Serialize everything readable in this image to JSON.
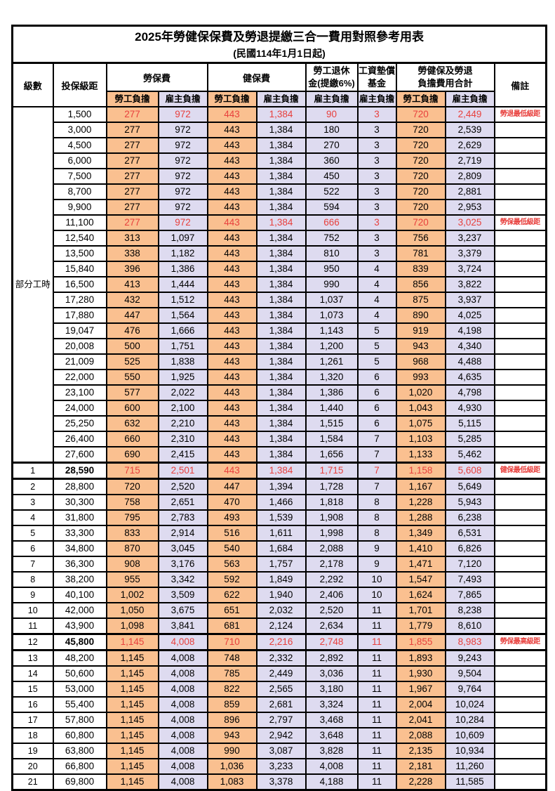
{
  "title": {
    "line1": "2025年勞健保保費及勞退提繳三合一費用對照參考用表",
    "line2": "(民國114年1月1日起)"
  },
  "header": {
    "level": "級數",
    "bracket": "投保級距",
    "labor": "勞保費",
    "health": "健保費",
    "pension_l1": "勞工退休",
    "pension_l2": "金(提繳6%)",
    "fund_l1": "工資墊償",
    "fund_l2": "基金",
    "total_l1": "勞健保及勞退",
    "total_l2": "負擔費用合計",
    "note": "備註",
    "employee": "勞工負擔",
    "employer": "雇主負擔"
  },
  "colors": {
    "employee_share_bg": "#FAC090",
    "employer_share_bg": "#DEDBF0",
    "highlight_text": "#E8403D"
  },
  "rows": [
    {
      "level": "部分工時",
      "level_span": 23,
      "bracket": "1,500",
      "values": [
        "277",
        "972",
        "443",
        "1,384",
        "90",
        "3",
        "720",
        "2,449"
      ],
      "note": "勞退最低級距",
      "red": true
    },
    {
      "bracket": "3,000",
      "values": [
        "277",
        "972",
        "443",
        "1,384",
        "180",
        "3",
        "720",
        "2,539"
      ],
      "note": ""
    },
    {
      "bracket": "4,500",
      "values": [
        "277",
        "972",
        "443",
        "1,384",
        "270",
        "3",
        "720",
        "2,629"
      ],
      "note": ""
    },
    {
      "bracket": "6,000",
      "values": [
        "277",
        "972",
        "443",
        "1,384",
        "360",
        "3",
        "720",
        "2,719"
      ],
      "note": ""
    },
    {
      "bracket": "7,500",
      "values": [
        "277",
        "972",
        "443",
        "1,384",
        "450",
        "3",
        "720",
        "2,809"
      ],
      "note": ""
    },
    {
      "bracket": "8,700",
      "values": [
        "277",
        "972",
        "443",
        "1,384",
        "522",
        "3",
        "720",
        "2,881"
      ],
      "note": ""
    },
    {
      "bracket": "9,900",
      "values": [
        "277",
        "972",
        "443",
        "1,384",
        "594",
        "3",
        "720",
        "2,953"
      ],
      "note": ""
    },
    {
      "bracket": "11,100",
      "values": [
        "277",
        "972",
        "443",
        "1,384",
        "666",
        "3",
        "720",
        "3,025"
      ],
      "note": "勞保最低級距",
      "red": true
    },
    {
      "bracket": "12,540",
      "values": [
        "313",
        "1,097",
        "443",
        "1,384",
        "752",
        "3",
        "756",
        "3,237"
      ],
      "note": ""
    },
    {
      "bracket": "13,500",
      "values": [
        "338",
        "1,182",
        "443",
        "1,384",
        "810",
        "3",
        "781",
        "3,379"
      ],
      "note": ""
    },
    {
      "bracket": "15,840",
      "values": [
        "396",
        "1,386",
        "443",
        "1,384",
        "950",
        "4",
        "839",
        "3,724"
      ],
      "note": ""
    },
    {
      "bracket": "16,500",
      "values": [
        "413",
        "1,444",
        "443",
        "1,384",
        "990",
        "4",
        "856",
        "3,822"
      ],
      "note": ""
    },
    {
      "bracket": "17,280",
      "values": [
        "432",
        "1,512",
        "443",
        "1,384",
        "1,037",
        "4",
        "875",
        "3,937"
      ],
      "note": ""
    },
    {
      "bracket": "17,880",
      "values": [
        "447",
        "1,564",
        "443",
        "1,384",
        "1,073",
        "4",
        "890",
        "4,025"
      ],
      "note": ""
    },
    {
      "bracket": "19,047",
      "values": [
        "476",
        "1,666",
        "443",
        "1,384",
        "1,143",
        "5",
        "919",
        "4,198"
      ],
      "note": ""
    },
    {
      "bracket": "20,008",
      "values": [
        "500",
        "1,751",
        "443",
        "1,384",
        "1,200",
        "5",
        "943",
        "4,340"
      ],
      "note": ""
    },
    {
      "bracket": "21,009",
      "values": [
        "525",
        "1,838",
        "443",
        "1,384",
        "1,261",
        "5",
        "968",
        "4,488"
      ],
      "note": ""
    },
    {
      "bracket": "22,000",
      "values": [
        "550",
        "1,925",
        "443",
        "1,384",
        "1,320",
        "6",
        "993",
        "4,635"
      ],
      "note": ""
    },
    {
      "bracket": "23,100",
      "values": [
        "577",
        "2,022",
        "443",
        "1,384",
        "1,386",
        "6",
        "1,020",
        "4,798"
      ],
      "note": ""
    },
    {
      "bracket": "24,000",
      "values": [
        "600",
        "2,100",
        "443",
        "1,384",
        "1,440",
        "6",
        "1,043",
        "4,930"
      ],
      "note": ""
    },
    {
      "bracket": "25,250",
      "values": [
        "632",
        "2,210",
        "443",
        "1,384",
        "1,515",
        "6",
        "1,075",
        "5,115"
      ],
      "note": ""
    },
    {
      "bracket": "26,400",
      "values": [
        "660",
        "2,310",
        "443",
        "1,384",
        "1,584",
        "7",
        "1,103",
        "5,285"
      ],
      "note": ""
    },
    {
      "bracket": "27,600",
      "values": [
        "690",
        "2,415",
        "443",
        "1,384",
        "1,656",
        "7",
        "1,133",
        "5,462"
      ],
      "note": ""
    },
    {
      "level": "1",
      "bracket": "28,590",
      "values": [
        "715",
        "2,501",
        "443",
        "1,384",
        "1,715",
        "7",
        "1,158",
        "5,608"
      ],
      "note": "健保最低級距",
      "red": true,
      "thick": true,
      "bold_bracket": true
    },
    {
      "level": "2",
      "bracket": "28,800",
      "values": [
        "720",
        "2,520",
        "447",
        "1,394",
        "1,728",
        "7",
        "1,167",
        "5,649"
      ],
      "note": ""
    },
    {
      "level": "3",
      "bracket": "30,300",
      "values": [
        "758",
        "2,651",
        "470",
        "1,466",
        "1,818",
        "8",
        "1,228",
        "5,943"
      ],
      "note": ""
    },
    {
      "level": "4",
      "bracket": "31,800",
      "values": [
        "795",
        "2,783",
        "493",
        "1,539",
        "1,908",
        "8",
        "1,288",
        "6,238"
      ],
      "note": ""
    },
    {
      "level": "5",
      "bracket": "33,300",
      "values": [
        "833",
        "2,914",
        "516",
        "1,611",
        "1,998",
        "8",
        "1,349",
        "6,531"
      ],
      "note": ""
    },
    {
      "level": "6",
      "bracket": "34,800",
      "values": [
        "870",
        "3,045",
        "540",
        "1,684",
        "2,088",
        "9",
        "1,410",
        "6,826"
      ],
      "note": ""
    },
    {
      "level": "7",
      "bracket": "36,300",
      "values": [
        "908",
        "3,176",
        "563",
        "1,757",
        "2,178",
        "9",
        "1,471",
        "7,120"
      ],
      "note": ""
    },
    {
      "level": "8",
      "bracket": "38,200",
      "values": [
        "955",
        "3,342",
        "592",
        "1,849",
        "2,292",
        "10",
        "1,547",
        "7,493"
      ],
      "note": ""
    },
    {
      "level": "9",
      "bracket": "40,100",
      "values": [
        "1,002",
        "3,509",
        "622",
        "1,940",
        "2,406",
        "10",
        "1,624",
        "7,865"
      ],
      "note": ""
    },
    {
      "level": "10",
      "bracket": "42,000",
      "values": [
        "1,050",
        "3,675",
        "651",
        "2,032",
        "2,520",
        "11",
        "1,701",
        "8,238"
      ],
      "note": ""
    },
    {
      "level": "11",
      "bracket": "43,900",
      "values": [
        "1,098",
        "3,841",
        "681",
        "2,124",
        "2,634",
        "11",
        "1,779",
        "8,610"
      ],
      "note": ""
    },
    {
      "level": "12",
      "bracket": "45,800",
      "values": [
        "1,145",
        "4,008",
        "710",
        "2,216",
        "2,748",
        "11",
        "1,855",
        "8,983"
      ],
      "note": "勞保最高級距",
      "red": true,
      "thick": true,
      "bold_bracket": true
    },
    {
      "level": "13",
      "bracket": "48,200",
      "values": [
        "1,145",
        "4,008",
        "748",
        "2,332",
        "2,892",
        "11",
        "1,893",
        "9,243"
      ],
      "note": ""
    },
    {
      "level": "14",
      "bracket": "50,600",
      "values": [
        "1,145",
        "4,008",
        "785",
        "2,449",
        "3,036",
        "11",
        "1,930",
        "9,504"
      ],
      "note": ""
    },
    {
      "level": "15",
      "bracket": "53,000",
      "values": [
        "1,145",
        "4,008",
        "822",
        "2,565",
        "3,180",
        "11",
        "1,967",
        "9,764"
      ],
      "note": ""
    },
    {
      "level": "16",
      "bracket": "55,400",
      "values": [
        "1,145",
        "4,008",
        "859",
        "2,681",
        "3,324",
        "11",
        "2,004",
        "10,024"
      ],
      "note": ""
    },
    {
      "level": "17",
      "bracket": "57,800",
      "values": [
        "1,145",
        "4,008",
        "896",
        "2,797",
        "3,468",
        "11",
        "2,041",
        "10,284"
      ],
      "note": ""
    },
    {
      "level": "18",
      "bracket": "60,800",
      "values": [
        "1,145",
        "4,008",
        "943",
        "2,942",
        "3,648",
        "11",
        "2,088",
        "10,609"
      ],
      "note": ""
    },
    {
      "level": "19",
      "bracket": "63,800",
      "values": [
        "1,145",
        "4,008",
        "990",
        "3,087",
        "3,828",
        "11",
        "2,135",
        "10,934"
      ],
      "note": ""
    },
    {
      "level": "20",
      "bracket": "66,800",
      "values": [
        "1,145",
        "4,008",
        "1,036",
        "3,233",
        "4,008",
        "11",
        "2,181",
        "11,260"
      ],
      "note": ""
    },
    {
      "level": "21",
      "bracket": "69,800",
      "values": [
        "1,145",
        "4,008",
        "1,083",
        "3,378",
        "4,188",
        "11",
        "2,228",
        "11,585"
      ],
      "note": ""
    }
  ]
}
